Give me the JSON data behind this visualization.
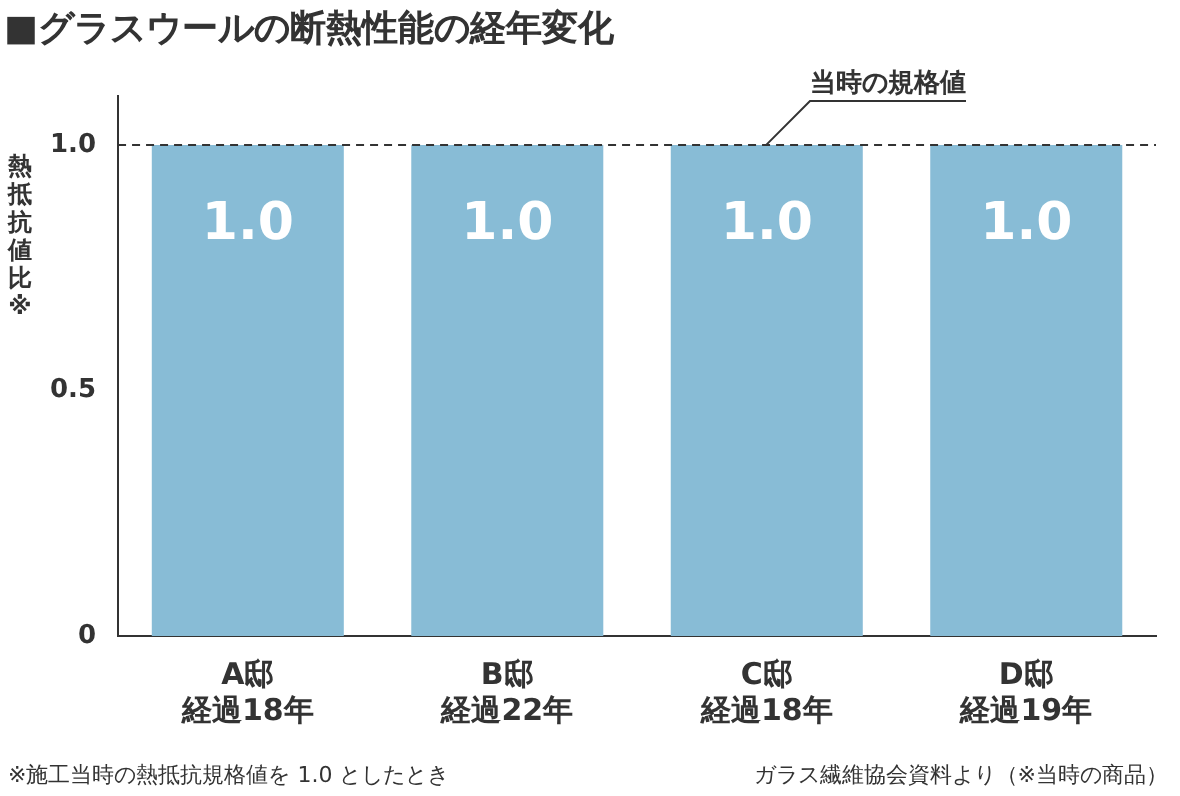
{
  "chart_data": {
    "type": "bar",
    "title": "■グラスウールの断熱性能の経年変化",
    "ylabel": "熱抵抗値比※",
    "categories": [
      "A邸経過18年",
      "B邸経過22年",
      "C邸経過18年",
      "D邸経過19年"
    ],
    "values": [
      1,
      1,
      1,
      1
    ],
    "color": "#88bcd6",
    "value_labels": [
      "1.0",
      "1.0",
      "1.0",
      "1.0"
    ],
    "ylim": [
      0,
      1.1
    ],
    "yticks": [
      0,
      0.5,
      {
        "value": 1,
        "label": "1.0"
      }
    ],
    "grid": false,
    "legend": false,
    "ref_lines": [
      {
        "axis": "y",
        "value": 1,
        "label": "当時の規格値",
        "color": "#333333",
        "line_style": "dashed"
      }
    ],
    "annotations": [
      "※施工当時の熱抵抗規格値を 1.0 としたとき",
      "ガラス繊維協会資料より（※当時の商品）"
    ]
  }
}
